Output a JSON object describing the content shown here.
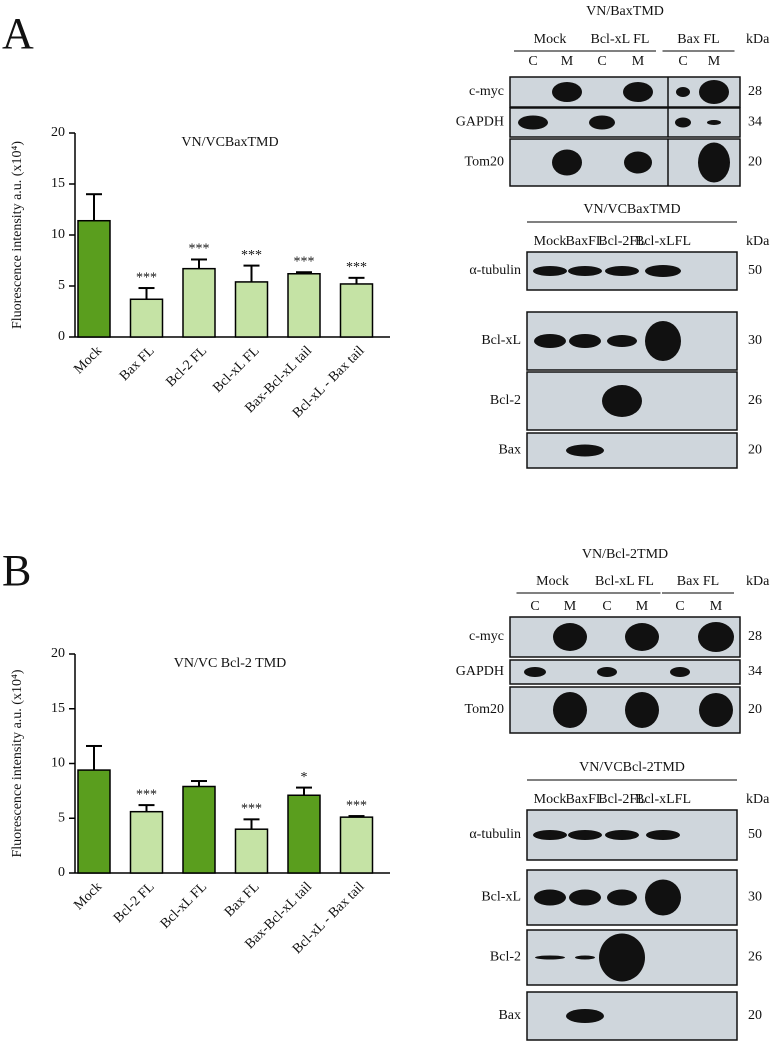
{
  "panels": [
    "A",
    "B"
  ],
  "chart_data": [
    {
      "type": "bar",
      "title": "VN/VCBaxTMD",
      "y_label": "Fluorescence intensity a.u. (x10⁴)",
      "categories": [
        "Mock",
        "Bax FL",
        "Bcl-2 FL",
        "Bcl-xL FL",
        "Bax-Bcl-xL tail",
        "Bcl-xL - Bax tail"
      ],
      "values": [
        11.4,
        3.7,
        6.7,
        5.4,
        6.2,
        5.2
      ],
      "errors": [
        2.6,
        1.1,
        0.9,
        1.6,
        0.15,
        0.6
      ],
      "annotations": [
        null,
        "***",
        "***",
        "***",
        "***",
        "***"
      ],
      "colors": [
        "#5a9e1e",
        "#c5e3a5",
        "#c5e3a5",
        "#c5e3a5",
        "#c5e3a5",
        "#c5e3a5"
      ],
      "ylim": [
        0,
        20
      ],
      "yticks": [
        0,
        5,
        10,
        15,
        20
      ]
    },
    {
      "type": "bar",
      "title": "VN/VC Bcl-2 TMD",
      "y_label": "Fluorescence intensity a.u. (x10⁴)",
      "categories": [
        "Mock",
        "Bcl-2 FL",
        "Bcl-xL FL",
        "Bax FL",
        "Bax-Bcl-xL tail",
        "Bcl-xL - Bax tail"
      ],
      "values": [
        9.4,
        5.6,
        7.9,
        4.0,
        7.1,
        5.1
      ],
      "errors": [
        2.2,
        0.6,
        0.5,
        0.9,
        0.7,
        0.1
      ],
      "annotations": [
        null,
        "***",
        null,
        "***",
        "*",
        "***"
      ],
      "colors": [
        "#5a9e1e",
        "#c5e3a5",
        "#5a9e1e",
        "#c5e3a5",
        "#5a9e1e",
        "#c5e3a5"
      ],
      "ylim": [
        0,
        20
      ],
      "yticks": [
        0,
        5,
        10,
        15,
        20
      ]
    }
  ],
  "blots": [
    {
      "title": "VN/BaxTMD",
      "groups": [
        "Mock",
        "Bcl-xL FL",
        "Bax FL"
      ],
      "lanes": [
        "C",
        "M",
        "C",
        "M",
        "C",
        "M"
      ],
      "unit": "kDa",
      "rows": [
        "c-myc",
        "GAPDH",
        "Tom20"
      ],
      "kda": [
        "28",
        "34",
        "20"
      ]
    },
    {
      "title": "VN/VCBaxTMD",
      "lanes": [
        "Mock",
        "BaxFL",
        "Bcl-2FL",
        "Bcl-xLFL"
      ],
      "unit": "kDa",
      "rows": [
        "α-tubulin",
        "Bcl-xL",
        "Bcl-2",
        "Bax"
      ],
      "kda": [
        "50",
        "30",
        "26",
        "20"
      ]
    },
    {
      "title": "VN/Bcl-2TMD",
      "groups": [
        "Mock",
        "Bcl-xL FL",
        "Bax FL"
      ],
      "lanes": [
        "C",
        "M",
        "C",
        "M",
        "C",
        "M"
      ],
      "unit": "kDa",
      "rows": [
        "c-myc",
        "GAPDH",
        "Tom20"
      ],
      "kda": [
        "28",
        "34",
        "20"
      ]
    },
    {
      "title": "VN/VCBcl-2TMD",
      "lanes": [
        "Mock",
        "BaxFL",
        "Bcl-2FL",
        "Bcl-xLFL"
      ],
      "unit": "kDa",
      "rows": [
        "α-tubulin",
        "Bcl-xL",
        "Bcl-2",
        "Bax"
      ],
      "kda": [
        "50",
        "30",
        "26",
        "20"
      ]
    }
  ]
}
